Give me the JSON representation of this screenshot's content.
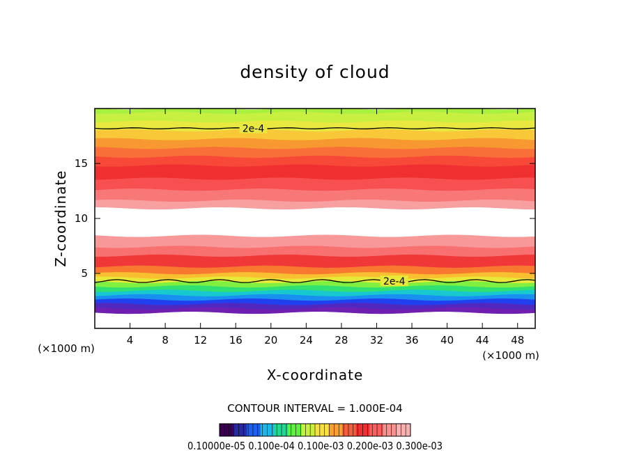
{
  "chart_data": {
    "type": "heatmap",
    "title": "density of cloud",
    "xlabel": "X-coordinate",
    "ylabel": "Z-coordinate",
    "x_unit_label": "(×1000 m)",
    "z_unit_label": "(×1000 m)",
    "xlim": [
      0,
      50
    ],
    "ylim": [
      0,
      20
    ],
    "x_ticks": [
      4,
      8,
      12,
      16,
      20,
      24,
      28,
      32,
      36,
      40,
      44,
      48
    ],
    "y_ticks": [
      5,
      10,
      15
    ],
    "contour_interval_text": "CONTOUR INTERVAL = 1.000E-04",
    "contour_lines": [
      {
        "label": "2e-4",
        "z_level_top": 18.2,
        "z_level_bottom": 4.3
      }
    ],
    "colorbar_labels_text": "0.10000e-05 0.100e-04 0.100e-03 0.200e-03 0.300e-03",
    "colorbar_colors": [
      "#3a004f",
      "#2a2aa0",
      "#1f5ff0",
      "#18b8e8",
      "#20d890",
      "#60f040",
      "#c8f040",
      "#f8e040",
      "#f8a030",
      "#f06040",
      "#f03030",
      "#f86060",
      "#f89090",
      "#f8b0b0"
    ],
    "bands": [
      {
        "z": [
          19.6,
          20.0
        ],
        "color": "#a8f040"
      },
      {
        "z": [
          18.8,
          19.6
        ],
        "color": "#c8f040"
      },
      {
        "z": [
          18.0,
          18.8
        ],
        "color": "#e8e840"
      },
      {
        "z": [
          17.2,
          18.0
        ],
        "color": "#f8c838"
      },
      {
        "z": [
          16.4,
          17.2
        ],
        "color": "#f89830"
      },
      {
        "z": [
          15.6,
          16.4
        ],
        "color": "#f87038"
      },
      {
        "z": [
          14.8,
          15.6
        ],
        "color": "#f84838"
      },
      {
        "z": [
          13.6,
          14.8
        ],
        "color": "#f03030"
      },
      {
        "z": [
          12.6,
          13.6
        ],
        "color": "#f85050"
      },
      {
        "z": [
          11.6,
          12.6
        ],
        "color": "#f87878"
      },
      {
        "z": [
          10.9,
          11.6
        ],
        "color": "#f8a0a0"
      },
      {
        "z": [
          8.4,
          10.9
        ],
        "color": "#ffffff"
      },
      {
        "z": [
          7.4,
          8.4
        ],
        "color": "#f89898"
      },
      {
        "z": [
          6.6,
          7.4
        ],
        "color": "#f87070"
      },
      {
        "z": [
          5.6,
          6.6
        ],
        "color": "#f03838"
      },
      {
        "z": [
          5.0,
          5.6
        ],
        "color": "#f87830"
      },
      {
        "z": [
          4.6,
          5.0
        ],
        "color": "#f8c030"
      },
      {
        "z": [
          4.2,
          4.6
        ],
        "color": "#e8e838"
      },
      {
        "z": [
          3.8,
          4.2
        ],
        "color": "#80f040"
      },
      {
        "z": [
          3.4,
          3.8
        ],
        "color": "#30e070"
      },
      {
        "z": [
          3.0,
          3.4
        ],
        "color": "#18c8d0"
      },
      {
        "z": [
          2.6,
          3.0
        ],
        "color": "#1890f0"
      },
      {
        "z": [
          2.2,
          2.6
        ],
        "color": "#2040f0"
      },
      {
        "z": [
          1.8,
          2.2
        ],
        "color": "#5028c0"
      },
      {
        "z": [
          1.4,
          1.8
        ],
        "color": "#7020b0"
      },
      {
        "z": [
          0.0,
          1.4
        ],
        "color": "#ffffff"
      }
    ]
  }
}
